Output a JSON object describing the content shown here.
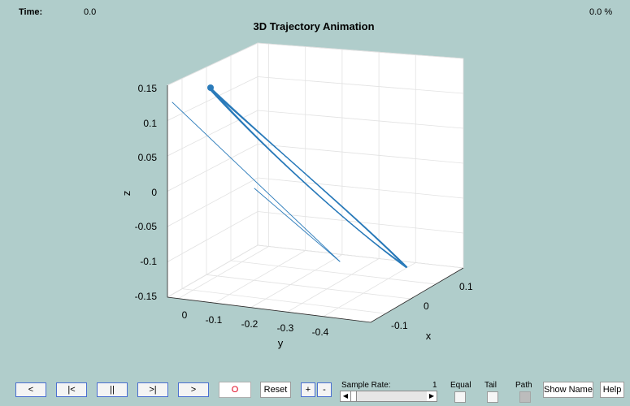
{
  "header": {
    "time_label": "Time:",
    "time_value": "0.0",
    "percent_value": "0.0 %"
  },
  "chart_data": {
    "type": "line",
    "title": "3D Trajectory Animation",
    "xlabel": "x",
    "ylabel": "y",
    "zlabel": "z",
    "x_ticks": [
      "0.1",
      "0",
      "-0.1"
    ],
    "y_ticks": [
      "0",
      "-0.1",
      "-0.2",
      "-0.3",
      "-0.4"
    ],
    "z_ticks": [
      "0.15",
      "0.1",
      "0.05",
      "0",
      "-0.05",
      "-0.1",
      "-0.15"
    ],
    "zlim": [
      -0.15,
      0.15
    ],
    "grid": true,
    "line_color": "#2b7bba"
  },
  "controls": {
    "prev_label": "<",
    "first_label": "|<",
    "pause_label": "||",
    "last_label": ">|",
    "next_label": ">",
    "record_label": "O",
    "reset_label": "Reset",
    "plus_label": "+",
    "minus_label": "-",
    "sample_rate_label": "Sample Rate:",
    "sample_rate_value": "1",
    "equal_label": "Equal",
    "tail_label": "Tail",
    "path_label": "Path",
    "show_name_label": "Show Name",
    "help_label": "Help",
    "slider_left_arrow": "◀",
    "slider_right_arrow": "▶"
  },
  "colors": {
    "background": "#b0cdcb",
    "record": "#e0001b",
    "button_border": "#4a6fd1"
  }
}
